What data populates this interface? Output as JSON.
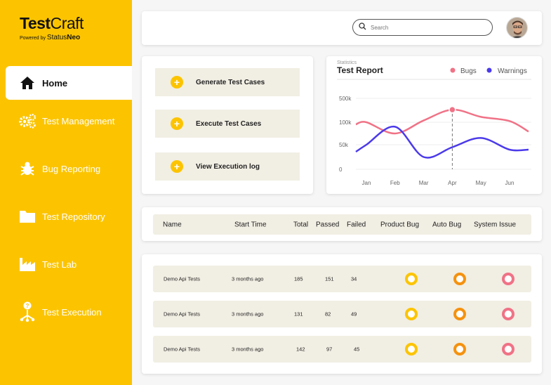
{
  "app": {
    "logo_bold": "Test",
    "logo_light": "Craft",
    "powered_by": "Powered by",
    "brand_light": "Status",
    "brand_bold": "Neo"
  },
  "sidebar": {
    "items": [
      {
        "label": "Home",
        "icon": "home-icon",
        "active": true
      },
      {
        "label": "Test Management",
        "icon": "gears-icon"
      },
      {
        "label": "Bug Reporting",
        "icon": "bug-icon"
      },
      {
        "label": "Test Repository",
        "icon": "folder-icon"
      },
      {
        "label": "Test Lab",
        "icon": "factory-icon"
      },
      {
        "label": "Test Execution",
        "icon": "execution-icon"
      }
    ]
  },
  "header": {
    "search_placeholder": "Search"
  },
  "actions": {
    "generate": "Generate Test Cases",
    "execute": "Execute Test Cases",
    "log": "View Execution log"
  },
  "colors": {
    "accent": "#fcc400",
    "bugs": "#f07286",
    "warnings": "#4b3aea",
    "auto_bug": "#f5920f"
  },
  "chart_data": {
    "type": "line",
    "subtitle": "Statistics",
    "title": "Test Report",
    "categories": [
      "Jan",
      "Feb",
      "Mar",
      "Apr",
      "May",
      "Jun"
    ],
    "y_ticks": [
      "500k",
      "100k",
      "50k",
      "0"
    ],
    "legend_position": "top-right",
    "series": [
      {
        "name": "Bugs",
        "color": "#f07286",
        "values": [
          100,
          75,
          130,
          310,
          190,
          120
        ]
      },
      {
        "name": "Warnings",
        "color": "#4b3aea",
        "values": [
          50,
          90,
          25,
          45,
          65,
          40
        ]
      }
    ],
    "highlight": {
      "category": "Apr",
      "series": "Bugs"
    }
  },
  "table": {
    "headers": {
      "name": "Name",
      "start": "Start Time",
      "total": "Total",
      "passed": "Passed",
      "failed": "Failed",
      "product_bug": "Product Bug",
      "auto_bug": "Auto Bug",
      "system_issue": "System Issue"
    },
    "rows": [
      {
        "name": "Demo Api Tests",
        "start": "3 months ago",
        "total": "185",
        "passed": "151",
        "failed": "34"
      },
      {
        "name": "Demo Api Tests",
        "start": "3 months ago",
        "total": "131",
        "passed": "82",
        "failed": "49"
      },
      {
        "name": "Demo Api Tests",
        "start": "3 months ago",
        "total": "142",
        "passed": "97",
        "failed": "45"
      }
    ]
  }
}
